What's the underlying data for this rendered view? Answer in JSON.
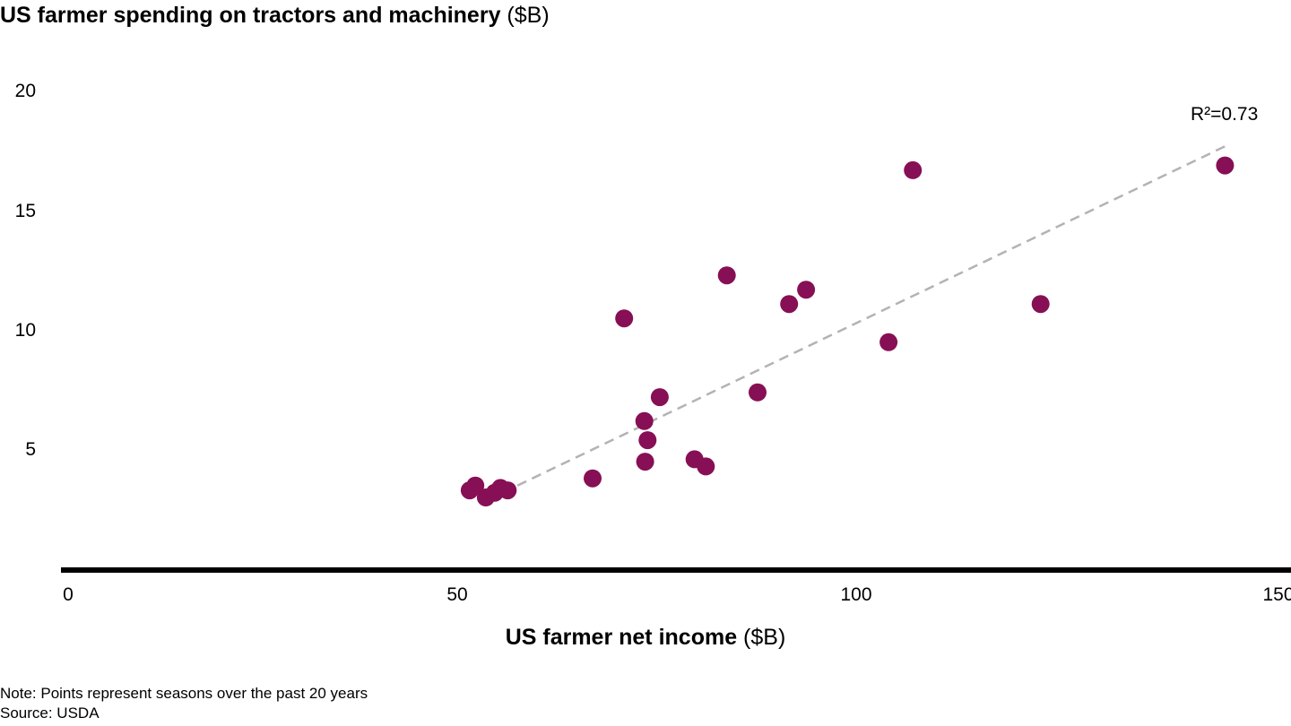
{
  "chart_data": {
    "type": "scatter",
    "title": "US farmer spending on tractors and machinery",
    "title_unit": "($B)",
    "xlabel": "US farmer net income",
    "xlabel_unit": "($B)",
    "ylabel": "US farmer spending on tractors and machinery ($B)",
    "xlim": [
      0,
      150
    ],
    "ylim": [
      0,
      20
    ],
    "x_ticks": [
      "0",
      "50",
      "100",
      "150"
    ],
    "y_ticks": [
      "5",
      "10",
      "15",
      "20"
    ],
    "grid": false,
    "legend": "none",
    "point_color": "#870F55",
    "trendline": {
      "style": "dashed",
      "color": "#B3B3B3",
      "from": [
        56,
        3.5
      ],
      "to": [
        143.5,
        17.7
      ],
      "annotation": "R²=0.73"
    },
    "points": [
      {
        "x": 50.1,
        "y": 3.3
      },
      {
        "x": 50.8,
        "y": 3.5
      },
      {
        "x": 52.1,
        "y": 3.0
      },
      {
        "x": 53.2,
        "y": 3.2
      },
      {
        "x": 53.9,
        "y": 3.4
      },
      {
        "x": 54.8,
        "y": 3.3
      },
      {
        "x": 65.3,
        "y": 3.8
      },
      {
        "x": 69.2,
        "y": 10.5
      },
      {
        "x": 71.7,
        "y": 6.2
      },
      {
        "x": 72.1,
        "y": 5.4
      },
      {
        "x": 71.8,
        "y": 4.5
      },
      {
        "x": 73.6,
        "y": 7.2
      },
      {
        "x": 77.9,
        "y": 4.6
      },
      {
        "x": 79.3,
        "y": 4.3
      },
      {
        "x": 81.9,
        "y": 12.3
      },
      {
        "x": 85.7,
        "y": 7.4
      },
      {
        "x": 89.6,
        "y": 11.1
      },
      {
        "x": 91.7,
        "y": 11.7
      },
      {
        "x": 101.9,
        "y": 9.5
      },
      {
        "x": 104.9,
        "y": 16.7
      },
      {
        "x": 120.7,
        "y": 11.1
      },
      {
        "x": 143.5,
        "y": 16.9
      }
    ]
  },
  "header": {
    "title_bold": "US farmer spending on tractors and machinery",
    "title_unit": " ($B)"
  },
  "axes": {
    "x_title_bold": "US farmer net income",
    "x_title_unit": " ($B)",
    "x_ticks": [
      "0",
      "50",
      "100",
      "150"
    ],
    "y_ticks": [
      "20",
      "15",
      "10",
      "5"
    ]
  },
  "annotation": {
    "r_squared": "R²=0.73"
  },
  "footer": {
    "note": "Note: Points represent seasons over the past 20 years",
    "source": "Source: USDA"
  }
}
